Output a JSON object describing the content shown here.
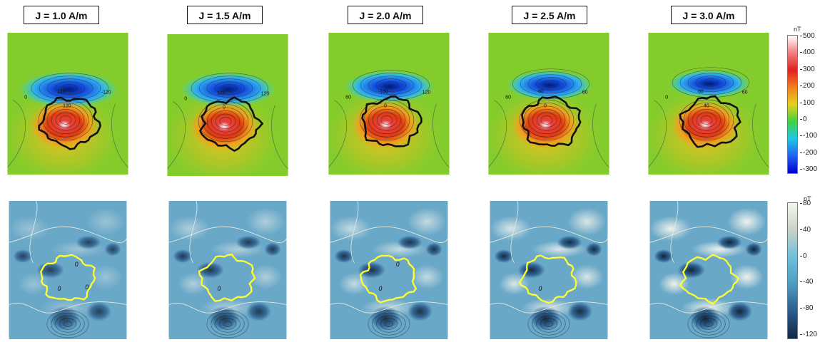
{
  "panels": [
    {
      "label": "J = 1.0 A/m",
      "level": 1.0,
      "top_contour_labels": [
        "120",
        "0",
        "120",
        "-120"
      ],
      "bottom_contour_labels": [
        "0",
        "0",
        "0"
      ]
    },
    {
      "label": "J = 1.5 A/m",
      "level": 1.5,
      "top_contour_labels": [
        "120",
        "0",
        "0",
        "120"
      ],
      "bottom_contour_labels": [
        "0"
      ]
    },
    {
      "label": "J = 2.0 A/m",
      "level": 2.0,
      "top_contour_labels": [
        "-180",
        "60",
        "0",
        "120"
      ],
      "bottom_contour_labels": [
        "0",
        "0"
      ]
    },
    {
      "label": "J = 2.5 A/m",
      "level": 2.5,
      "top_contour_labels": [
        "60",
        "60",
        "0",
        "60"
      ],
      "bottom_contour_labels": [
        "0"
      ]
    },
    {
      "label": "J = 3.0 A/m",
      "level": 3.0,
      "top_contour_labels": [
        "60",
        "0",
        "40",
        "60"
      ],
      "bottom_contour_labels": []
    }
  ],
  "colorbar_top": {
    "unit": "nT",
    "ticks": [
      "500",
      "400",
      "300",
      "200",
      "100",
      "0",
      "-100",
      "-200",
      "-300"
    ],
    "range": [
      -300,
      500
    ],
    "colors": [
      "#ffffff",
      "#f08080",
      "#e02020",
      "#f08020",
      "#e8d020",
      "#40d040",
      "#20c8e8",
      "#2060f0",
      "#0000d0"
    ]
  },
  "colorbar_bottom": {
    "unit": "nT",
    "ticks": [
      "80",
      "40",
      "0",
      "-40",
      "-80",
      "-120"
    ],
    "range": [
      -120,
      100
    ],
    "colors": [
      "#f4f6ee",
      "#c8d2c4",
      "#6ec0dc",
      "#4c9cc0",
      "#2a5c8c",
      "#142848"
    ]
  },
  "outline_colors": {
    "top": "#111111",
    "bottom": "#ffff33"
  }
}
